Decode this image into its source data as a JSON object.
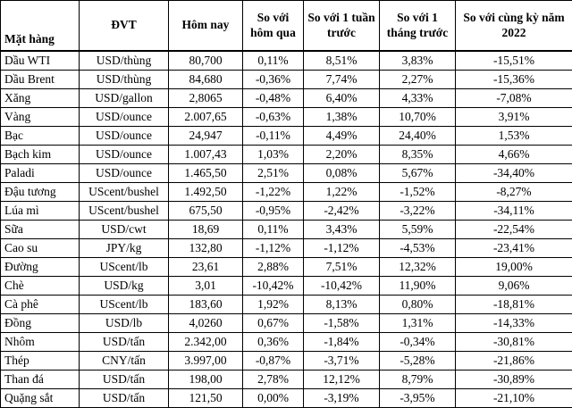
{
  "table": {
    "headers": [
      "Mặt hàng",
      "ĐVT",
      "Hôm nay",
      "So với hôm qua",
      "So với 1 tuần trước",
      "So với 1 tháng trước",
      "So với cùng kỳ năm 2022"
    ],
    "rows": [
      [
        "Dầu WTI",
        "USD/thùng",
        "80,700",
        "0,11%",
        "8,51%",
        "3,83%",
        "-15,51%"
      ],
      [
        "Dầu Brent",
        "USD/thùng",
        "84,680",
        "-0,36%",
        "7,74%",
        "2,27%",
        "-15,36%"
      ],
      [
        "Xăng",
        "USD/gallon",
        "2,8065",
        "-0,48%",
        "6,40%",
        "4,33%",
        "-7,08%"
      ],
      [
        "Vàng",
        "USD/ounce",
        "2.007,65",
        "-0,63%",
        "1,38%",
        "10,70%",
        "3,91%"
      ],
      [
        "Bạc",
        "USD/ounce",
        "24,947",
        "-0,11%",
        "4,49%",
        "24,40%",
        "1,53%"
      ],
      [
        "Bạch kim",
        "USD/ounce",
        "1.007,43",
        "1,03%",
        "2,20%",
        "8,35%",
        "4,66%"
      ],
      [
        "Paladi",
        "USD/ounce",
        "1.465,50",
        "2,51%",
        "0,08%",
        "5,67%",
        "-34,40%"
      ],
      [
        "Đậu tương",
        "UScent/bushel",
        "1.492,50",
        "-1,22%",
        "1,22%",
        "-1,52%",
        "-8,27%"
      ],
      [
        "Lúa mì",
        "UScent/bushel",
        "675,50",
        "-0,95%",
        "-2,42%",
        "-3,22%",
        "-34,11%"
      ],
      [
        "Sữa",
        "USD/cwt",
        "18,69",
        "0,11%",
        "3,43%",
        "5,59%",
        "-22,54%"
      ],
      [
        "Cao su",
        "JPY/kg",
        "132,80",
        "-1,12%",
        "-1,12%",
        "-4,53%",
        "-23,41%"
      ],
      [
        "Đường",
        "UScent/lb",
        "23,61",
        "2,88%",
        "7,51%",
        "12,32%",
        "19,00%"
      ],
      [
        "Chè",
        "USD/kg",
        "3,01",
        "-10,42%",
        "-10,42%",
        "11,90%",
        "9,06%"
      ],
      [
        "Cà phê",
        "UScent/lb",
        "183,60",
        "1,92%",
        "8,13%",
        "0,80%",
        "-18,81%"
      ],
      [
        "Đồng",
        "USD/lb",
        "4,0260",
        "0,67%",
        "-1,58%",
        "1,31%",
        "-14,33%"
      ],
      [
        "Nhôm",
        "USD/tấn",
        "2.342,00",
        "0,36%",
        "-1,84%",
        "-0,34%",
        "-30,81%"
      ],
      [
        "Thép",
        "CNY/tấn",
        "3.997,00",
        "-0,87%",
        "-3,71%",
        "-5,28%",
        "-21,86%"
      ],
      [
        "Than đá",
        "USD/tấn",
        "198,00",
        "2,78%",
        "12,12%",
        "8,79%",
        "-30,89%"
      ],
      [
        "Quặng sắt",
        "USD/tấn",
        "121,50",
        "0,00%",
        "-3,19%",
        "-3,95%",
        "-21,10%"
      ]
    ]
  }
}
